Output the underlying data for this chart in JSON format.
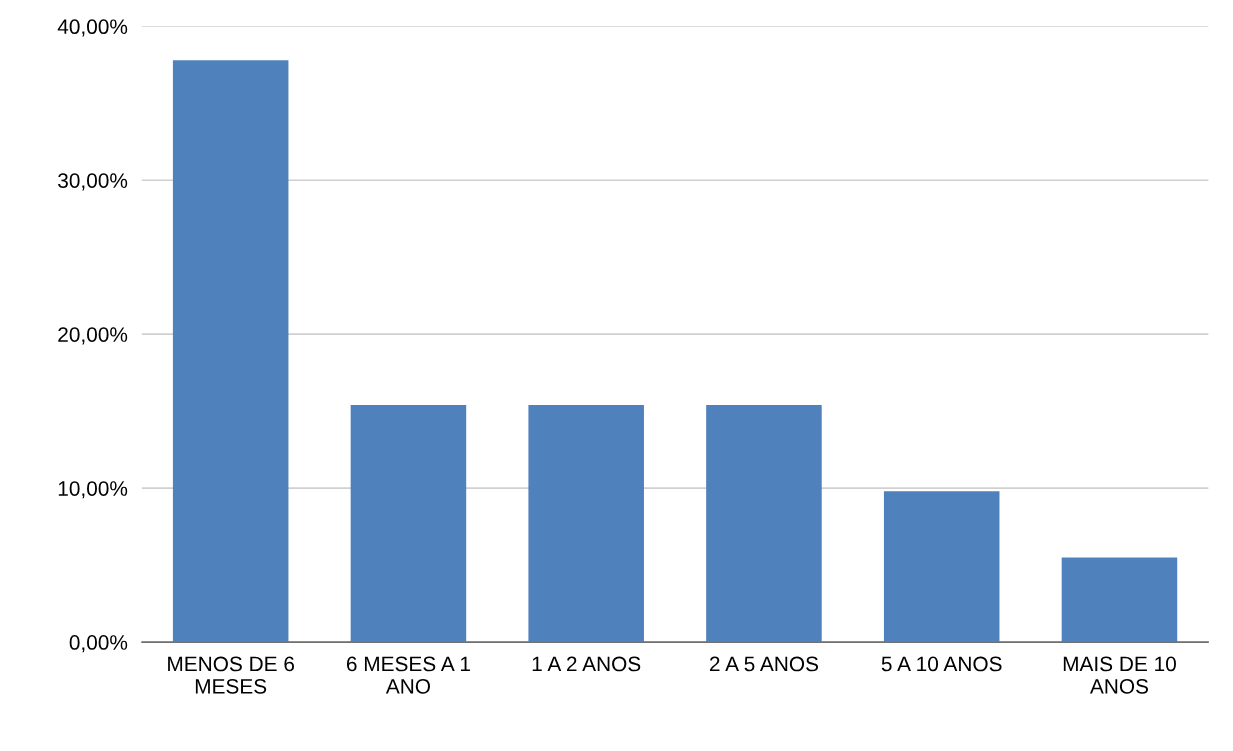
{
  "chart_data": {
    "type": "bar",
    "categories": [
      "MENOS DE 6\nMESES",
      "6 MESES A 1\nANO",
      "1 A 2 ANOS",
      "2 A 5 ANOS",
      "5 A 10 ANOS",
      "MAIS DE 10\nANOS"
    ],
    "values": [
      37.8,
      15.4,
      15.4,
      15.4,
      9.8,
      5.5
    ],
    "color": "#4f81bd",
    "ylim": [
      0,
      40
    ],
    "yticks": [
      {
        "value": 0,
        "label": "0,00%"
      },
      {
        "value": 10,
        "label": "10,00%"
      },
      {
        "value": 20,
        "label": "20,00%"
      },
      {
        "value": 30,
        "label": "30,00%"
      },
      {
        "value": 40,
        "label": "40,00%"
      }
    ],
    "grid": "y"
  }
}
